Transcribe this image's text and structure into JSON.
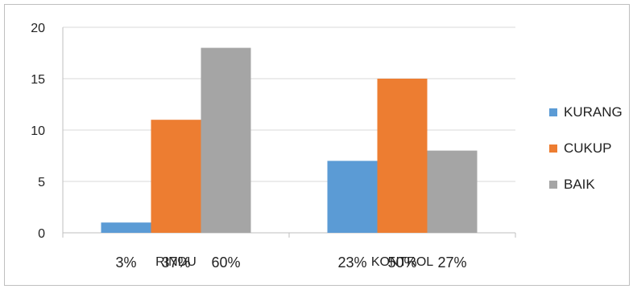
{
  "chart_data": {
    "type": "bar",
    "categories": [
      "RINDU",
      "KONTROL"
    ],
    "series": [
      {
        "name": "KURANG",
        "values": [
          1,
          7
        ],
        "color": "#5b9bd5",
        "pct_labels": [
          "3%",
          "23%"
        ]
      },
      {
        "name": "CUKUP",
        "values": [
          11,
          15
        ],
        "color": "#ed7d31",
        "pct_labels": [
          "37%",
          "50%"
        ]
      },
      {
        "name": "BAIK",
        "values": [
          18,
          8
        ],
        "color": "#a5a5a5",
        "pct_labels": [
          "60%",
          "27%"
        ]
      }
    ],
    "yticks": [
      0,
      5,
      10,
      15,
      20
    ],
    "ylim": [
      0,
      20
    ],
    "grid": true,
    "legend_position": "right",
    "title": "",
    "xlabel": "",
    "ylabel": ""
  }
}
